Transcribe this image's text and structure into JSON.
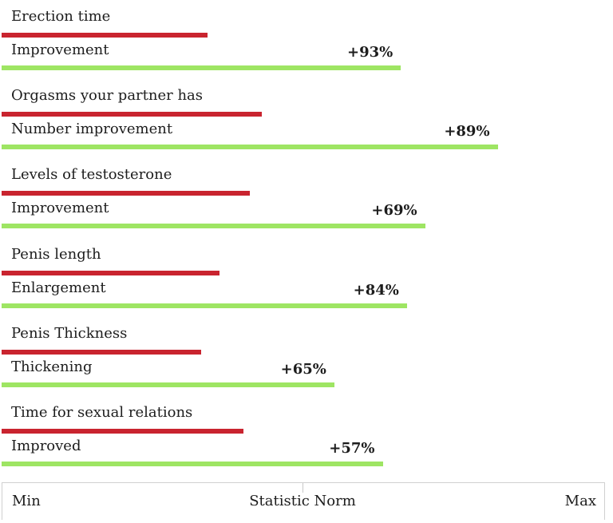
{
  "colors": {
    "baseline": "#c9242f",
    "improved": "#9ee563"
  },
  "chart_data": {
    "type": "bar",
    "orientation": "horizontal",
    "axis_labels": {
      "min": "Min",
      "mid": "Statistic Norm",
      "max": "Max"
    },
    "groups": [
      {
        "category": "Erection time",
        "sub_label": "Improvement",
        "baseline": 0.34,
        "improved": 0.66,
        "percent_label": "+93%"
      },
      {
        "category": "Orgasms your partner has",
        "sub_label": "Number improvement",
        "baseline": 0.43,
        "improved": 0.82,
        "percent_label": "+89%"
      },
      {
        "category": "Levels of testosterone",
        "sub_label": "Improvement",
        "baseline": 0.41,
        "improved": 0.7,
        "percent_label": "+69%"
      },
      {
        "category": "Penis length",
        "sub_label": "Enlargement",
        "baseline": 0.36,
        "improved": 0.67,
        "percent_label": "+84%"
      },
      {
        "category": "Penis Thickness",
        "sub_label": "Thickening",
        "baseline": 0.33,
        "improved": 0.55,
        "percent_label": "+65%"
      },
      {
        "category": "Time for sexual relations",
        "sub_label": "Improved",
        "baseline": 0.4,
        "improved": 0.63,
        "percent_label": "+57%"
      }
    ]
  }
}
